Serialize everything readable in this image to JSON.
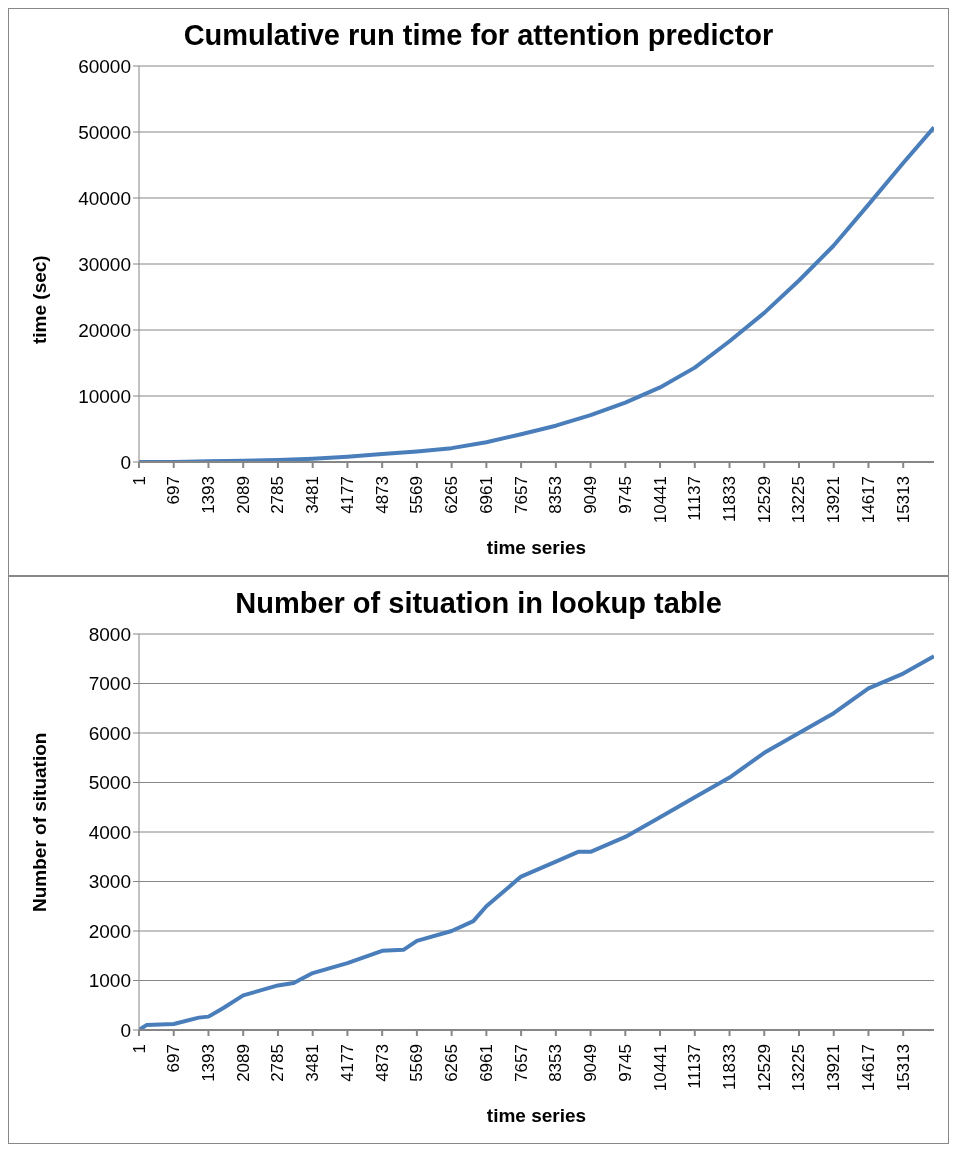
{
  "chart_data": [
    {
      "type": "line",
      "title": "Cumulative run time for attention predictor",
      "xlabel": "time series",
      "ylabel": "time (sec)",
      "x": [
        1,
        697,
        1393,
        2089,
        2785,
        3481,
        4177,
        4873,
        5569,
        6265,
        6961,
        7657,
        8353,
        9049,
        9745,
        10441,
        11137,
        11833,
        12529,
        13225,
        13921,
        14617,
        15313,
        15930
      ],
      "series": [
        {
          "color": "#4a7ebb",
          "values": [
            0,
            0,
            100,
            200,
            300,
            500,
            800,
            1200,
            1600,
            2100,
            3000,
            4200,
            5500,
            7100,
            9000,
            11300,
            14300,
            18300,
            22600,
            27500,
            32800,
            39000,
            45300,
            50700
          ]
        }
      ],
      "xlim": [
        1,
        15930
      ],
      "xticks": [
        1,
        697,
        1393,
        2089,
        2785,
        3481,
        4177,
        4873,
        5569,
        6265,
        6961,
        7657,
        8353,
        9049,
        9745,
        10441,
        11137,
        11833,
        12529,
        13225,
        13921,
        14617,
        15313
      ],
      "ylim": [
        0,
        60000
      ],
      "yticks": [
        0,
        10000,
        20000,
        30000,
        40000,
        50000,
        60000
      ],
      "grid": "y",
      "legend": false,
      "marker": "none",
      "line_style": "solid"
    },
    {
      "type": "line",
      "title": "Number of situation in lookup table",
      "xlabel": "time series",
      "ylabel": "Number of situation",
      "x": [
        1,
        150,
        697,
        1200,
        1393,
        1700,
        2089,
        2785,
        3100,
        3481,
        4177,
        4873,
        5300,
        5569,
        6265,
        6700,
        6961,
        7657,
        8353,
        8800,
        9049,
        9745,
        10441,
        11137,
        11833,
        12529,
        13225,
        13921,
        14617,
        15313,
        15930
      ],
      "series": [
        {
          "color": "#4a7ebb",
          "values": [
            0,
            100,
            120,
            250,
            270,
            450,
            700,
            900,
            950,
            1150,
            1350,
            1600,
            1620,
            1800,
            2000,
            2200,
            2500,
            3100,
            3400,
            3600,
            3600,
            3900,
            4300,
            4700,
            5100,
            5600,
            6000,
            6400,
            6900,
            7200,
            7550
          ]
        }
      ],
      "xlim": [
        1,
        15930
      ],
      "xticks": [
        1,
        697,
        1393,
        2089,
        2785,
        3481,
        4177,
        4873,
        5569,
        6265,
        6961,
        7657,
        8353,
        9049,
        9745,
        10441,
        11137,
        11833,
        12529,
        13225,
        13921,
        14617,
        15313
      ],
      "ylim": [
        0,
        8000
      ],
      "yticks": [
        0,
        1000,
        2000,
        3000,
        4000,
        5000,
        6000,
        7000,
        8000
      ],
      "grid": "y",
      "legend": false,
      "marker": "none",
      "line_style": "solid"
    }
  ]
}
